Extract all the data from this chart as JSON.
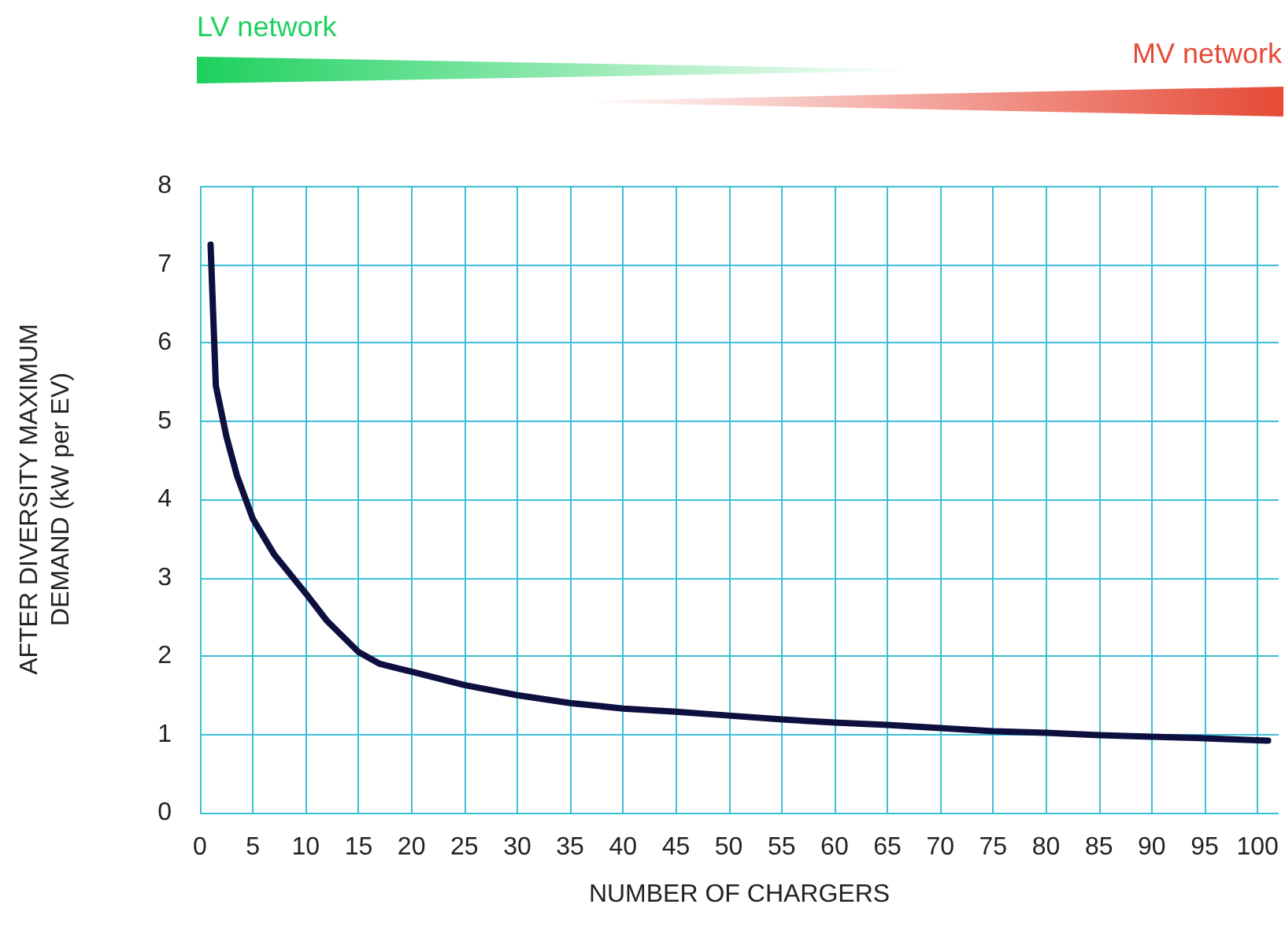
{
  "chart_data": {
    "type": "line",
    "xlabel": "NUMBER OF CHARGERS",
    "ylabel": "AFTER DIVERSITY MAXIMUM\nDEMAND (kW per EV)",
    "annotations": [
      "LV network",
      "MV network"
    ],
    "x": [
      1,
      1.5,
      2.5,
      3.5,
      5,
      7,
      10,
      12,
      15,
      17,
      20,
      25,
      30,
      35,
      40,
      45,
      50,
      55,
      60,
      65,
      70,
      75,
      80,
      85,
      90,
      95,
      101
    ],
    "series": [
      {
        "color": "#0d0f3f",
        "values": [
          7.25,
          5.45,
          4.8,
          4.3,
          3.75,
          3.3,
          2.8,
          2.45,
          2.05,
          1.9,
          1.8,
          1.63,
          1.5,
          1.4,
          1.33,
          1.29,
          1.24,
          1.19,
          1.15,
          1.12,
          1.08,
          1.04,
          1.02,
          0.99,
          0.97,
          0.95,
          0.92
        ]
      }
    ],
    "xlim": [
      0,
      102
    ],
    "xticks": [
      0,
      5,
      10,
      15,
      20,
      25,
      30,
      35,
      40,
      45,
      50,
      55,
      60,
      65,
      70,
      75,
      80,
      85,
      90,
      95,
      100
    ],
    "ylim": [
      0,
      8
    ],
    "yticks": [
      0,
      1,
      2,
      3,
      4,
      5,
      6,
      7,
      8
    ],
    "grid": true,
    "marker": "none",
    "line_style": "solid"
  }
}
